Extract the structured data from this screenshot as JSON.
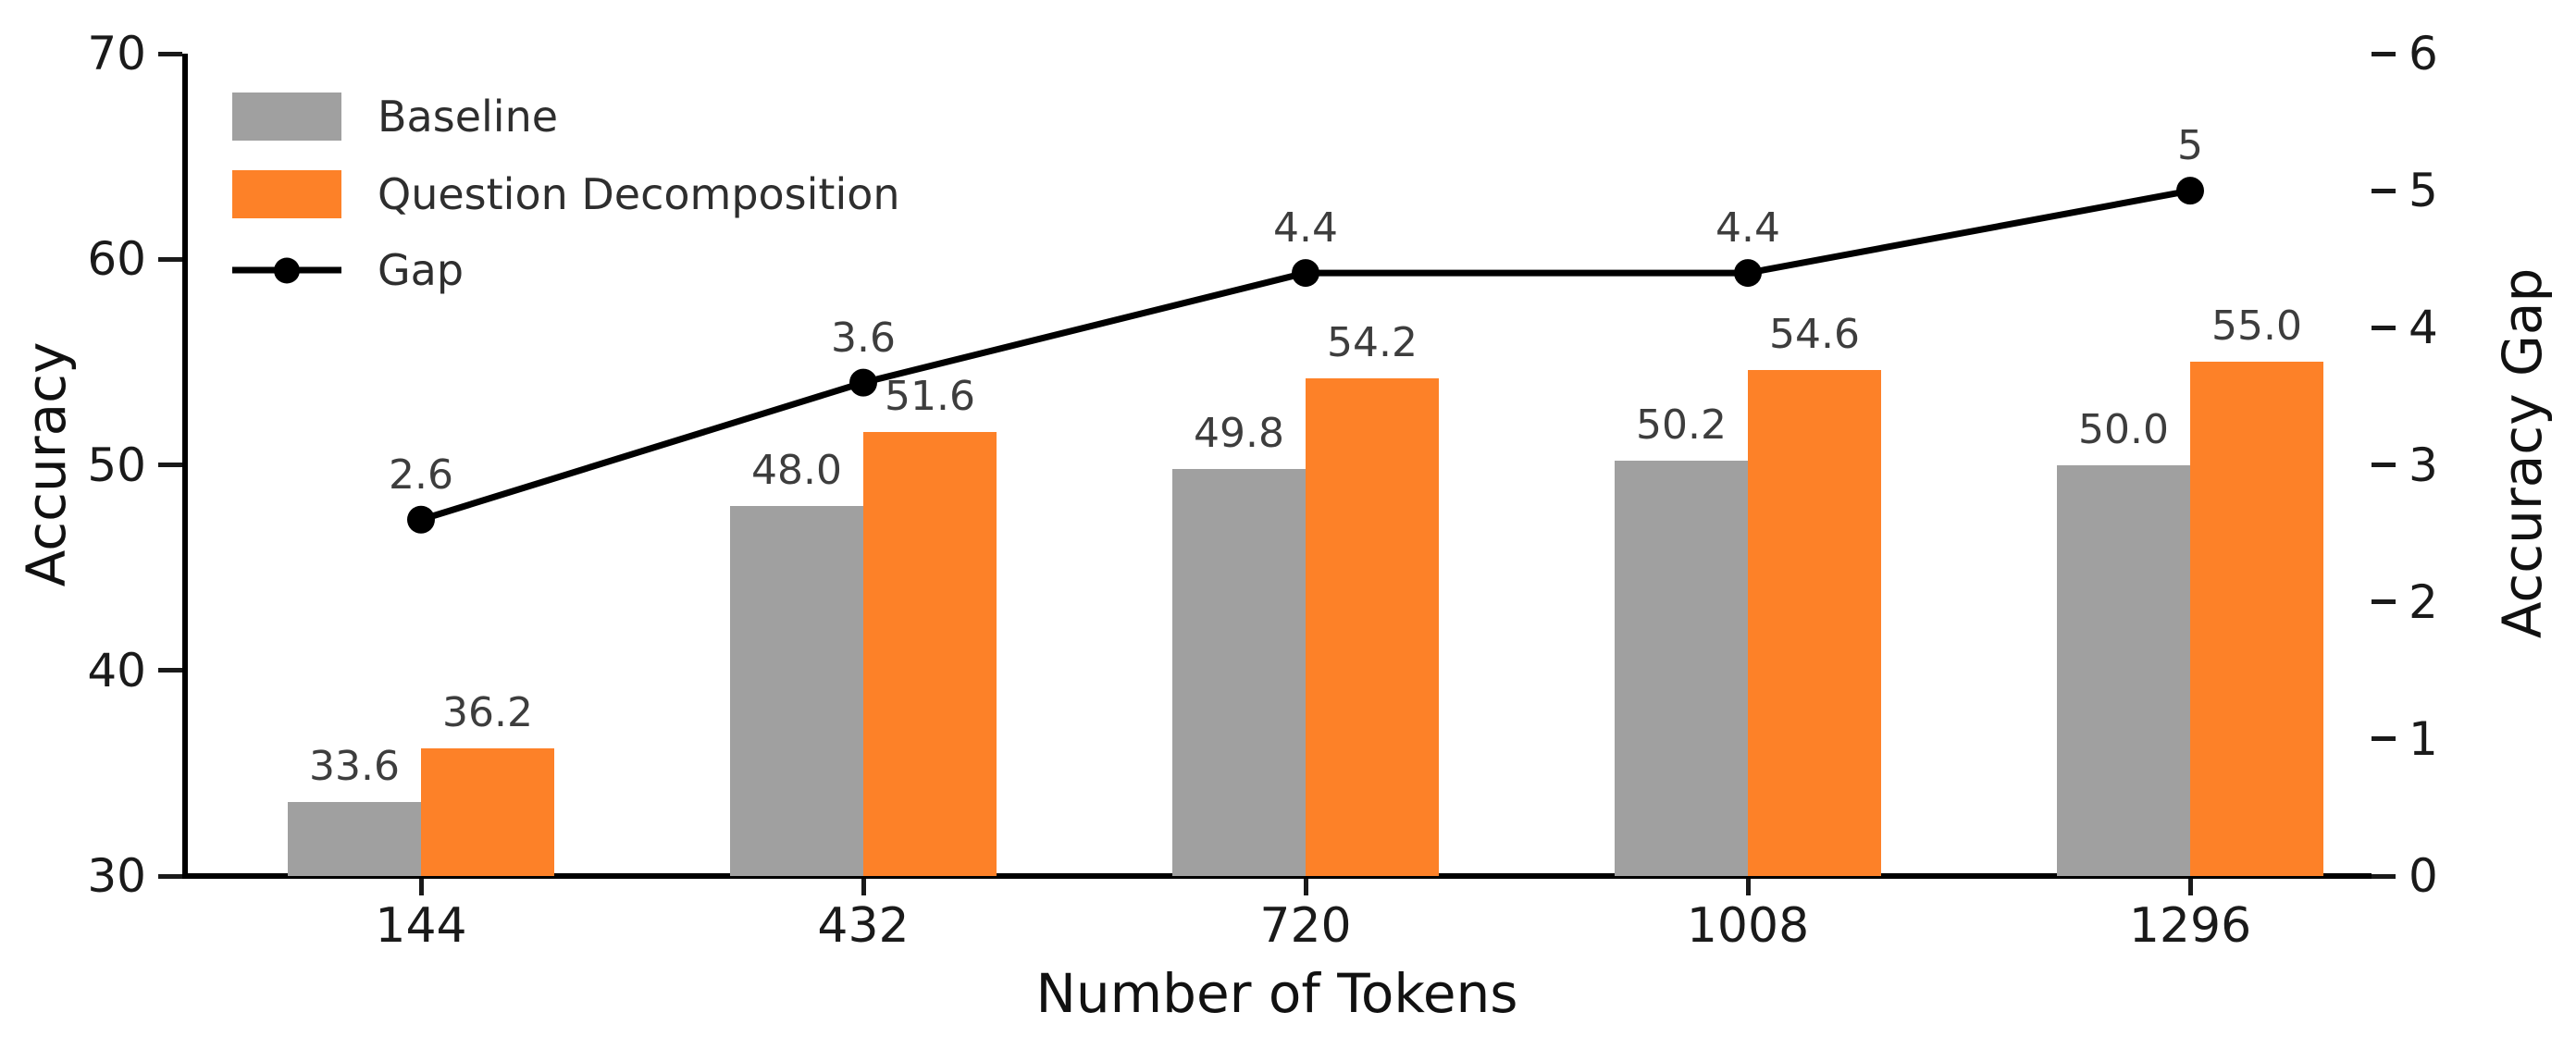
{
  "chart_data": {
    "type": "bar",
    "subtype": "grouped-bars-with-line-overlay",
    "categories": [
      "144",
      "432",
      "720",
      "1008",
      "1296"
    ],
    "series": [
      {
        "name": "Baseline",
        "type": "bar",
        "axis": "left",
        "color": "#a0a0a0",
        "values": [
          33.6,
          48.0,
          49.8,
          50.2,
          50.0
        ],
        "labels": [
          "33.6",
          "48.0",
          "49.8",
          "50.2",
          "50.0"
        ]
      },
      {
        "name": "Question Decomposition",
        "type": "bar",
        "axis": "left",
        "color": "#fd8128",
        "values": [
          36.2,
          51.6,
          54.2,
          54.6,
          55.0
        ],
        "labels": [
          "36.2",
          "51.6",
          "54.2",
          "54.6",
          "55.0"
        ]
      },
      {
        "name": "Gap",
        "type": "line",
        "axis": "right",
        "color": "#000000",
        "marker": "circle",
        "values": [
          2.6,
          3.6,
          4.4,
          4.4,
          5
        ],
        "labels": [
          "2.6",
          "3.6",
          "4.4",
          "4.4",
          "5"
        ]
      }
    ],
    "left_axis": {
      "label": "Accuracy",
      "min": 30,
      "max": 70,
      "ticks": [
        30,
        40,
        50,
        60,
        70
      ]
    },
    "right_axis": {
      "label": "Accuracy Gap",
      "min": 0,
      "max": 6,
      "ticks": [
        0,
        1,
        2,
        3,
        4,
        5,
        6
      ]
    },
    "x_axis": {
      "label": "Number of Tokens"
    },
    "legend": {
      "position": "upper-left",
      "entries": [
        "Baseline",
        "Question Decomposition",
        "Gap"
      ]
    },
    "grid": false,
    "title": ""
  }
}
